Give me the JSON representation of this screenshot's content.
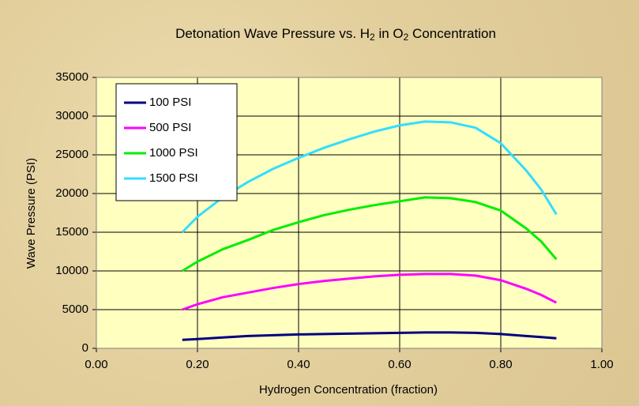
{
  "chart_data": {
    "type": "line",
    "title": [
      "Detonation Wave Pressure vs. H",
      "2",
      " in O",
      "2",
      " Concentration"
    ],
    "x_label": "Hydrogen Concentration (fraction)",
    "y_label": "Wave Pressure (PSI)",
    "x": [
      0.17,
      0.2,
      0.25,
      0.3,
      0.35,
      0.4,
      0.45,
      0.5,
      0.55,
      0.6,
      0.65,
      0.7,
      0.75,
      0.8,
      0.85,
      0.88,
      0.91
    ],
    "series": [
      {
        "name": "100 PSI",
        "color": "#000080",
        "values": [
          1100,
          1200,
          1400,
          1600,
          1700,
          1800,
          1850,
          1900,
          1950,
          2000,
          2050,
          2050,
          2000,
          1850,
          1600,
          1450,
          1300
        ]
      },
      {
        "name": "500 PSI",
        "color": "#ff00ff",
        "values": [
          5000,
          5700,
          6600,
          7200,
          7800,
          8300,
          8700,
          9000,
          9300,
          9500,
          9600,
          9600,
          9400,
          8800,
          7700,
          6900,
          5900
        ]
      },
      {
        "name": "1000 PSI",
        "color": "#00ee00",
        "values": [
          10000,
          11200,
          12800,
          14000,
          15300,
          16300,
          17200,
          17900,
          18500,
          19000,
          19500,
          19400,
          18900,
          17800,
          15500,
          13800,
          11500
        ]
      },
      {
        "name": "1500 PSI",
        "color": "#33ddff",
        "values": [
          15000,
          17000,
          19500,
          21500,
          23200,
          24600,
          25900,
          27000,
          28000,
          28800,
          29300,
          29200,
          28500,
          26500,
          23000,
          20500,
          17300
        ]
      }
    ],
    "xlim": [
      0,
      1
    ],
    "xticks": [
      {
        "value": 0,
        "label": "0.00"
      },
      {
        "value": 0.2,
        "label": "0.20"
      },
      {
        "value": 0.4,
        "label": "0.40"
      },
      {
        "value": 0.6,
        "label": "0.60"
      },
      {
        "value": 0.8,
        "label": "0.80"
      },
      {
        "value": 1,
        "label": "1.00"
      }
    ],
    "ylim": [
      0,
      35000
    ],
    "yticks": [
      0,
      5000,
      10000,
      15000,
      20000,
      25000,
      30000,
      35000
    ],
    "grid": true,
    "legend": "upper left"
  }
}
